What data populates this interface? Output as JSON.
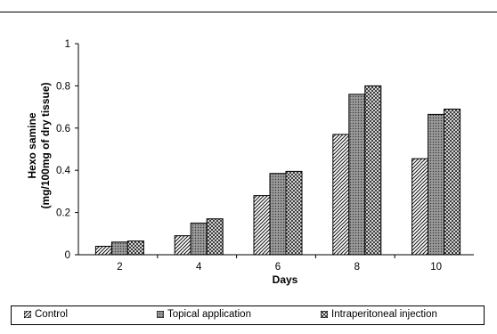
{
  "chart_data": {
    "type": "bar",
    "title": "",
    "xlabel": "Days",
    "ylabel_line1": "Hexo samine",
    "ylabel_line2": "(mg/100mg of dry tissue)",
    "ylim": [
      0,
      1
    ],
    "yticks": [
      "0",
      "0.2",
      "0.4",
      "0.6",
      "0.8",
      "1"
    ],
    "ytick_values": [
      0,
      0.2,
      0.4,
      0.6,
      0.8,
      1
    ],
    "categories": [
      "2",
      "4",
      "6",
      "8",
      "10"
    ],
    "series": [
      {
        "name": "Control",
        "values": [
          0.04,
          0.09,
          0.28,
          0.57,
          0.455
        ],
        "pattern": "diag-sparse"
      },
      {
        "name": "Topical application",
        "values": [
          0.06,
          0.15,
          0.385,
          0.76,
          0.665
        ],
        "pattern": "grey-fine"
      },
      {
        "name": "Intraperitoneal injection",
        "values": [
          0.065,
          0.17,
          0.395,
          0.8,
          0.69
        ],
        "pattern": "checker"
      }
    ],
    "legend_position": "bottom",
    "grid": false
  }
}
